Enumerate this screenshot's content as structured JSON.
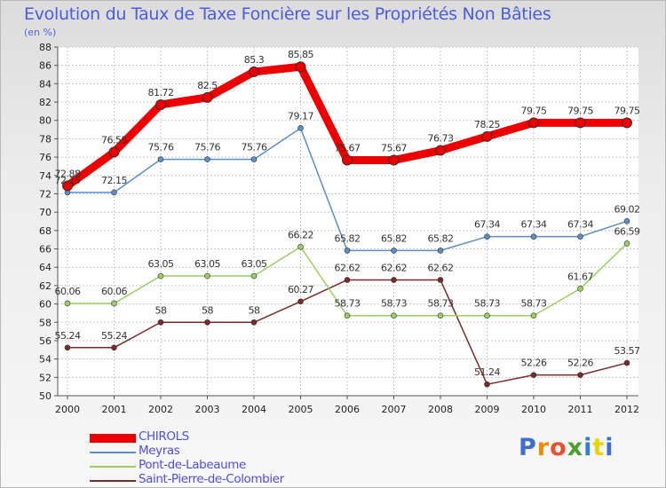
{
  "title": "Evolution du Taux de Taxe Foncière sur les Propriétés Non Bâties",
  "subtitle": "(en %)",
  "logo_text": "Proxiti",
  "chart_data": {
    "type": "line",
    "title": "Evolution du Taux de Taxe Foncière sur les Propriétés Non Bâties",
    "ylabel": "(en %)",
    "xlabel": "",
    "categories": [
      "2000",
      "2001",
      "2002",
      "2003",
      "2004",
      "2005",
      "2006",
      "2007",
      "2008",
      "2009",
      "2010",
      "2011",
      "2012"
    ],
    "ylim": [
      50,
      88
    ],
    "yticks": [
      50,
      52,
      54,
      56,
      58,
      60,
      62,
      64,
      66,
      68,
      70,
      72,
      74,
      76,
      78,
      80,
      82,
      84,
      86,
      88
    ],
    "grid": true,
    "legend_position": "bottom-left",
    "series": [
      {
        "name": "CHIROLS",
        "color": "#ee0000",
        "values": [
          72.88,
          76.55,
          81.72,
          82.5,
          85.3,
          85.85,
          75.67,
          75.67,
          76.73,
          78.25,
          79.75,
          79.75,
          79.75
        ],
        "labels": [
          "72.88",
          "76.55",
          "81.72",
          "82.5",
          "85.3",
          "85.85",
          "75.67",
          "75.67",
          "76.73",
          "78.25",
          "79.75",
          "79.75",
          "79.75"
        ]
      },
      {
        "name": "Meyras",
        "color": "#5b8fc9",
        "values": [
          72.15,
          72.15,
          75.76,
          75.76,
          75.76,
          79.17,
          65.82,
          65.82,
          65.82,
          67.34,
          67.34,
          67.34,
          69.02
        ],
        "labels": [
          "72.15",
          "72.15",
          "75.76",
          "75.76",
          "75.76",
          "79.17",
          "65.82",
          "65.82",
          "65.82",
          "67.34",
          "67.34",
          "67.34",
          "69.02"
        ]
      },
      {
        "name": "Pont-de-Labeaume",
        "color": "#9ccf60",
        "values": [
          60.06,
          60.06,
          63.05,
          63.05,
          63.05,
          66.22,
          58.73,
          58.73,
          58.73,
          58.73,
          58.73,
          61.67,
          66.59
        ],
        "labels": [
          "60.06",
          "60.06",
          "63.05",
          "63.05",
          "63.05",
          "66.22",
          "58.73",
          "58.73",
          "58.73",
          "58.73",
          "58.73",
          "61.67",
          "66.59"
        ]
      },
      {
        "name": "Saint-Pierre-de-Colombier",
        "color": "#7a2a2a",
        "values": [
          55.24,
          55.24,
          58,
          58,
          58,
          60.27,
          62.62,
          62.62,
          62.62,
          51.24,
          52.26,
          52.26,
          53.57
        ],
        "labels": [
          "55.24",
          "55.24",
          "58",
          "58",
          "58",
          "60.27",
          "62.62",
          "62.62",
          "62.62",
          "51.24",
          "52.26",
          "52.26",
          "53.57"
        ]
      }
    ]
  }
}
